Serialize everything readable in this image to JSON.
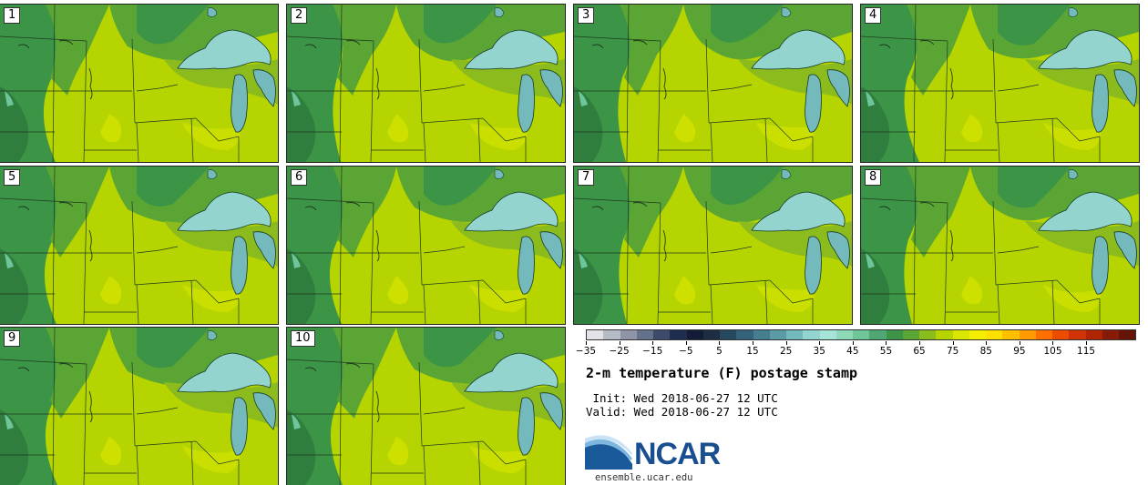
{
  "title": "2-m temperature (F) postage stamp",
  "init_label": " Init: Wed 2018-06-27 12 UTC",
  "valid_label": "Valid: Wed 2018-06-27 12 UTC",
  "site": "ensemble.ucar.edu",
  "logo_text": "NCAR",
  "panels": [
    {
      "label": "1"
    },
    {
      "label": "2"
    },
    {
      "label": "3"
    },
    {
      "label": "4"
    },
    {
      "label": "5"
    },
    {
      "label": "6"
    },
    {
      "label": "7"
    },
    {
      "label": "8"
    },
    {
      "label": "9"
    },
    {
      "label": "10"
    }
  ],
  "colorbar": {
    "ticks": [
      "−35",
      "−25",
      "−15",
      "−5",
      "5",
      "15",
      "25",
      "35",
      "45",
      "55",
      "65",
      "75",
      "85",
      "95",
      "105",
      "115"
    ],
    "colors": [
      "#e2e2e8",
      "#b7bbc6",
      "#8f95a6",
      "#65708a",
      "#3d4a6a",
      "#1f2d4f",
      "#121c36",
      "#1c2d44",
      "#27485f",
      "#33627a",
      "#457e8f",
      "#5a9ba6",
      "#74b9bb",
      "#93d4ce",
      "#a8e3d8",
      "#8fd8b8",
      "#6ec59a",
      "#4ea874",
      "#3c9446",
      "#5aa533",
      "#8cbb1e",
      "#b5d400",
      "#d8e600",
      "#f2f000",
      "#ffe000",
      "#ffc000",
      "#ff9a00",
      "#ff6e00",
      "#ee4a00",
      "#d03200",
      "#b02400",
      "#8a1a08",
      "#661408"
    ]
  }
}
